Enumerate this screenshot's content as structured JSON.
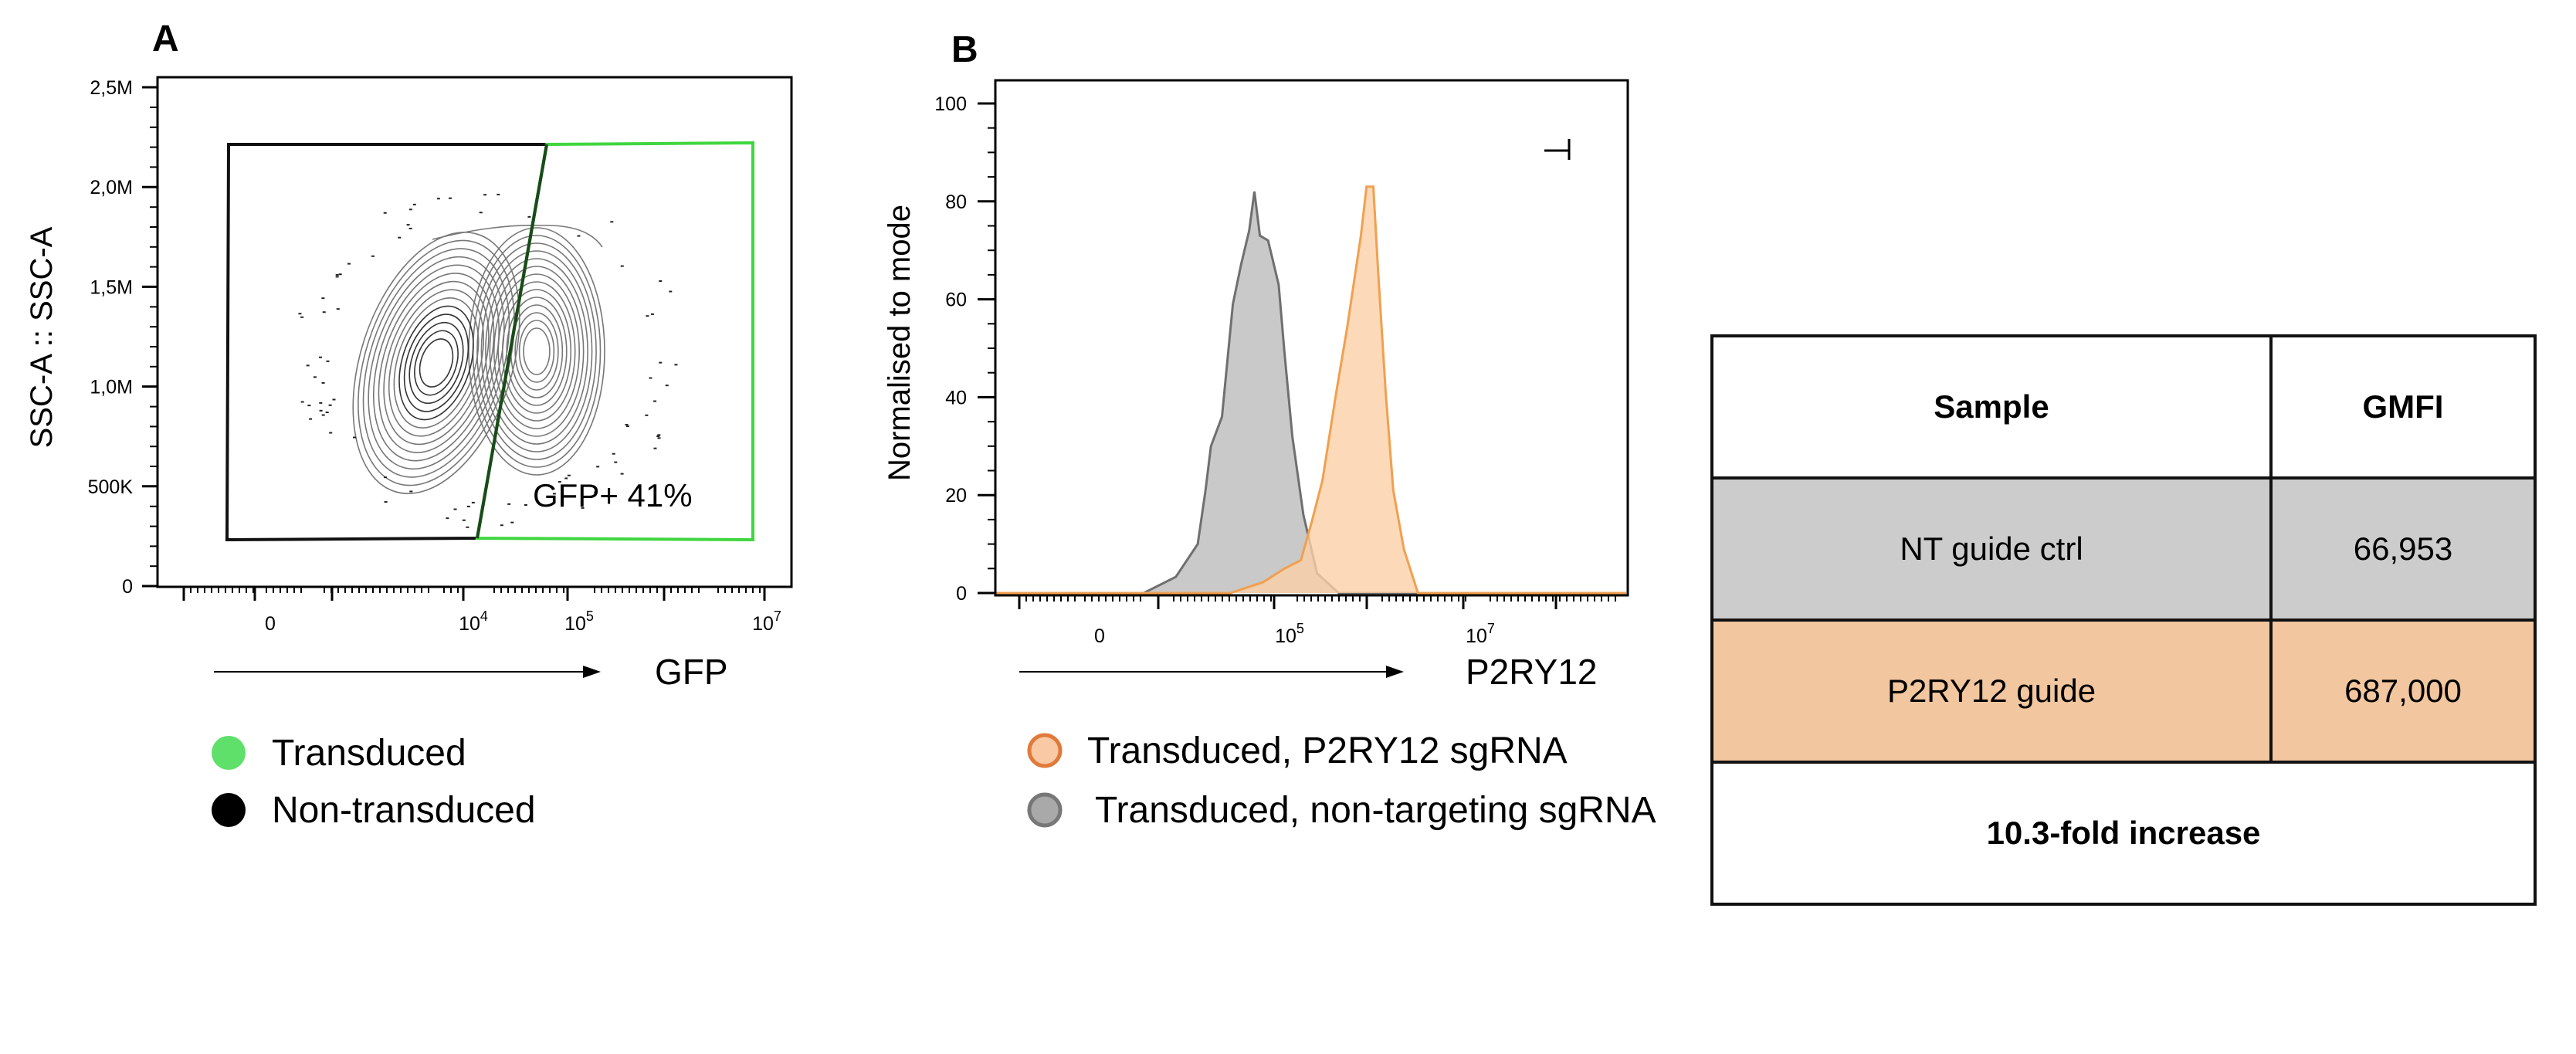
{
  "panels": {
    "A": {
      "label": "A",
      "ylabel": "SSC-A :: SSC-A",
      "xlabel": "GFP",
      "y_ticks": [
        "0",
        "500K",
        "1,0M",
        "1,5M",
        "2,0M",
        "2,5M"
      ],
      "x_ticks": [
        {
          "base": "0",
          "exp": ""
        },
        {
          "base": "10",
          "exp": "4"
        },
        {
          "base": "10",
          "exp": "5"
        },
        {
          "base": "10",
          "exp": "7"
        }
      ],
      "gate_label": "GFP+ 41%",
      "legend": [
        {
          "label": "Transduced",
          "color": "#5ee06a"
        },
        {
          "label": "Non-transduced",
          "color": "#000000"
        }
      ],
      "gate_colors": {
        "positive": "#3fd63f",
        "negative": "#111111"
      }
    },
    "B": {
      "label": "B",
      "legend": [
        {
          "label": "Transduced, P2RY12 sgRNA",
          "fill": "#f9c8a4",
          "stroke": "#e07a3a"
        },
        {
          "label": "Transduced, non-targeting sgRNA",
          "fill": "#a9a9a9",
          "stroke": "#777777"
        }
      ]
    }
  },
  "chart_data": [
    {
      "type": "scatter",
      "subtype": "contour",
      "xlabel": "GFP",
      "ylabel": "SSC-A :: SSC-A",
      "x_scale": "biexponential",
      "y_range": [
        0,
        2500000
      ],
      "annotations": [
        "GFP+ 41%"
      ]
    },
    {
      "type": "area",
      "xlabel": "P2RY12",
      "ylabel": "Normalised to mode",
      "x_scale": "biexponential",
      "ylim": [
        0,
        100
      ],
      "y_ticks": [
        "0",
        "20",
        "40",
        "60",
        "80",
        "100"
      ],
      "x_ticks": [
        {
          "base": "0",
          "exp": ""
        },
        {
          "base": "10",
          "exp": "5"
        },
        {
          "base": "10",
          "exp": "7"
        }
      ],
      "series": [
        {
          "name": "Transduced, non-targeting sgRNA",
          "color": "#c9c9c9",
          "x": [
            2900,
            6300,
            10700,
            12900,
            14700,
            19200,
            25000,
            30400,
            37000,
            42000,
            48000,
            58400,
            75500,
            87000,
            105000,
            137000,
            191000,
            322000
          ],
          "y": [
            0,
            3.3,
            10,
            21,
            30,
            36,
            59,
            67,
            74,
            82,
            73,
            72,
            63,
            49,
            32,
            16,
            4,
            0
          ]
        },
        {
          "name": "Transduced, P2RY12 sgRNA",
          "color": "#fbd0a8",
          "x": [
            23500,
            51600,
            87000,
            129000,
            167000,
            217000,
            303000,
            393000,
            550000,
            630000,
            742000,
            832000,
            1000000,
            1200000,
            1550000,
            2180000
          ],
          "y": [
            0,
            2.2,
            5,
            6.7,
            14.4,
            23,
            41,
            54,
            73,
            83,
            83,
            66,
            41,
            21,
            9,
            0
          ]
        }
      ]
    },
    {
      "type": "table",
      "columns": [
        "Sample",
        "GMFI"
      ],
      "rows": [
        {
          "sample": "NT guide ctrl",
          "gmfi": "66,953",
          "color": "#cccccc"
        },
        {
          "sample": "P2RY12 guide",
          "gmfi": "687,000",
          "color": "#f2c69e"
        }
      ],
      "footer": "10.3-fold increase"
    }
  ]
}
